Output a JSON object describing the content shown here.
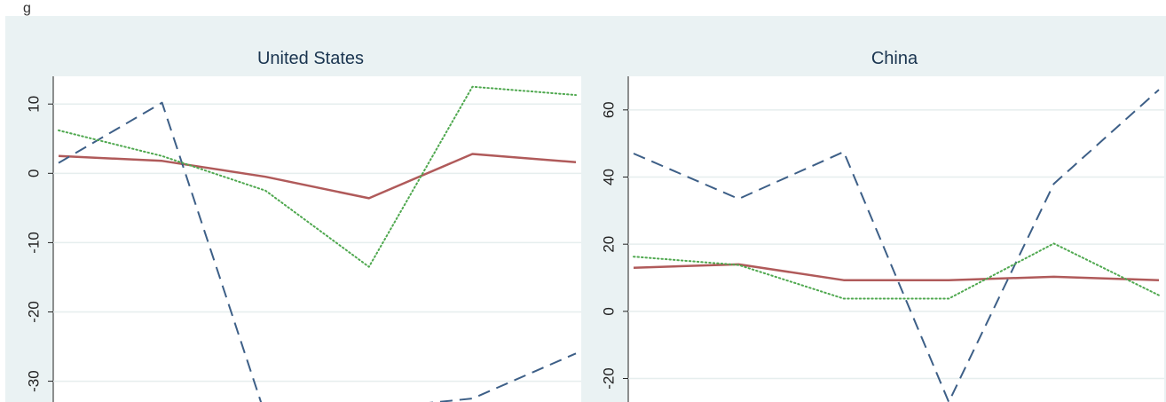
{
  "page_fragment": "g",
  "colors": {
    "panel_bg": "#eaf2f3",
    "plot_bg": "#ffffff",
    "grid": "#e6eeee",
    "solid": "#b05a5a",
    "dashed": "#3d5f87",
    "dotted": "#4fa84f"
  },
  "chart_data": [
    {
      "type": "line",
      "title": "United States",
      "xlabel": "",
      "ylabel": "",
      "ylim": [
        -33,
        14
      ],
      "yticks": [
        {
          "v": 10,
          "label": "10"
        },
        {
          "v": 0,
          "label": "0"
        },
        {
          "v": -10,
          "label": "-10"
        },
        {
          "v": -20,
          "label": "-20"
        },
        {
          "v": -30,
          "label": "-30"
        }
      ],
      "x": [
        1,
        2,
        3,
        4,
        5,
        6
      ],
      "series": [
        {
          "style": "solid",
          "values": [
            2.5,
            1.8,
            -0.5,
            -3.6,
            2.8,
            1.6
          ]
        },
        {
          "style": "dashed",
          "values": [
            1.5,
            10.2,
            -35,
            -34,
            -32.5,
            -26
          ]
        },
        {
          "style": "dotted",
          "values": [
            6.2,
            2.5,
            -2.5,
            -13.5,
            12.5,
            11.3
          ]
        }
      ]
    },
    {
      "type": "line",
      "title": "China",
      "xlabel": "",
      "ylabel": "",
      "ylim": [
        -27,
        70
      ],
      "yticks": [
        {
          "v": 60,
          "label": "60"
        },
        {
          "v": 40,
          "label": "40"
        },
        {
          "v": 20,
          "label": "20"
        },
        {
          "v": 0,
          "label": "0"
        },
        {
          "v": -20,
          "label": "-20"
        }
      ],
      "x": [
        1,
        2,
        3,
        4,
        5,
        6
      ],
      "series": [
        {
          "style": "solid",
          "values": [
            13,
            14,
            9.3,
            9.3,
            10.3,
            9.3
          ]
        },
        {
          "style": "dashed",
          "values": [
            47,
            33.5,
            47.5,
            -27,
            38,
            66
          ]
        },
        {
          "style": "dotted",
          "values": [
            16.3,
            13.8,
            3.8,
            3.8,
            20.2,
            4.8
          ]
        }
      ]
    }
  ]
}
